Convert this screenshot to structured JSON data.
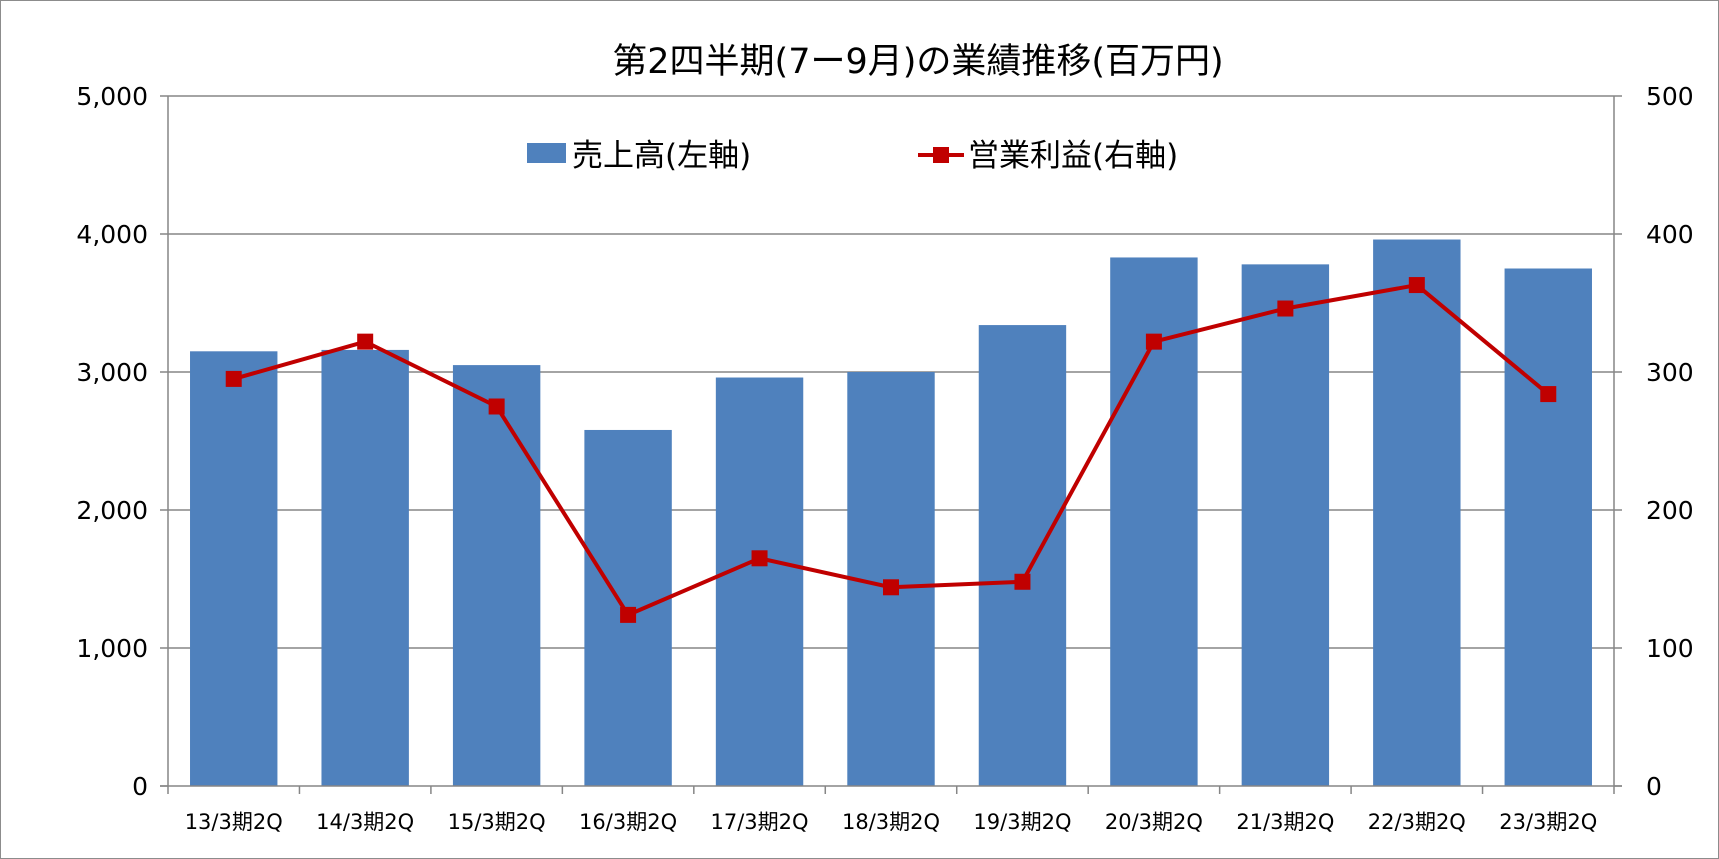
{
  "chart_data": {
    "type": "bar",
    "title": "第2四半期(7ー9月)の業績推移(百万円)",
    "categories": [
      "13/3期2Q",
      "14/3期2Q",
      "15/3期2Q",
      "16/3期2Q",
      "17/3期2Q",
      "18/3期2Q",
      "19/3期2Q",
      "20/3期2Q",
      "21/3期2Q",
      "22/3期2Q",
      "23/3期2Q"
    ],
    "series": [
      {
        "name": "売上高(左軸)",
        "type": "bar",
        "axis": "left",
        "color": "#4f81bd",
        "values": [
          3150,
          3160,
          3050,
          2580,
          2960,
          3000,
          3340,
          3830,
          3780,
          3960,
          3750
        ]
      },
      {
        "name": "営業利益(右軸)",
        "type": "line",
        "axis": "right",
        "color": "#c00000",
        "marker": "square",
        "values": [
          295,
          322,
          275,
          124,
          165,
          144,
          148,
          322,
          346,
          363,
          284
        ]
      }
    ],
    "ylim_left": [
      0,
      5000
    ],
    "ylim_right": [
      0,
      500
    ],
    "yticks_left": [
      "0",
      "1,000",
      "2,000",
      "3,000",
      "4,000",
      "5,000"
    ],
    "yticks_right": [
      "0",
      "100",
      "200",
      "300",
      "400",
      "500"
    ],
    "grid": true,
    "legend_position": "top"
  }
}
